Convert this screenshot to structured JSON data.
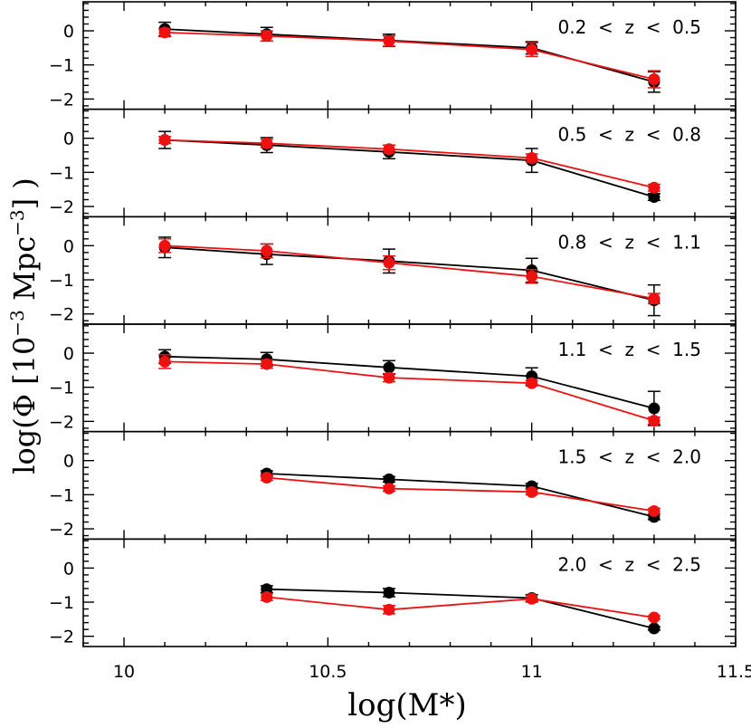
{
  "chart_data": {
    "type": "scatter",
    "xlabel": "log(M*)",
    "ylabel": "log(Φ [10⁻³ Mpc⁻³] )",
    "ylabel_parts": {
      "prefix": "log(Φ [10",
      "sup": "−3",
      "mid": " Mpc",
      "sup2": "−3",
      "suffix": "] )"
    },
    "xlim": [
      9.9,
      11.5
    ],
    "ylim": [
      -2.3,
      0.85
    ],
    "x_ticks": [
      10,
      10.5,
      11,
      11.5
    ],
    "x_tick_labels": [
      "10",
      "10.5",
      "11",
      "11.5"
    ],
    "y_ticks": [
      0,
      -1,
      -2
    ],
    "y_tick_labels": [
      "0",
      "−1",
      "−2"
    ],
    "grid": false,
    "colors": {
      "black_series": "#000000",
      "red_series": "#ee1111"
    },
    "panels": [
      {
        "label": "0.2  <  z  <  0.5",
        "series": [
          {
            "color": "black",
            "x": [
              10.1,
              10.35,
              10.65,
              11.0,
              11.3
            ],
            "y": [
              0.05,
              -0.1,
              -0.28,
              -0.5,
              -1.5
            ],
            "err": [
              0.2,
              0.2,
              0.18,
              0.18,
              0.3
            ]
          },
          {
            "color": "red",
            "x": [
              10.1,
              10.35,
              10.65,
              11.0,
              11.3
            ],
            "y": [
              -0.05,
              -0.15,
              -0.3,
              -0.55,
              -1.42
            ],
            "err": [
              0.12,
              0.15,
              0.15,
              0.2,
              0.25
            ]
          }
        ]
      },
      {
        "label": "0.5  <  z  <  0.8",
        "series": [
          {
            "color": "black",
            "x": [
              10.1,
              10.35,
              10.65,
              11.0,
              11.3
            ],
            "y": [
              -0.05,
              -0.2,
              -0.4,
              -0.65,
              -1.72
            ],
            "err": [
              0.25,
              0.22,
              0.2,
              0.35,
              0.1
            ]
          },
          {
            "color": "red",
            "x": [
              10.1,
              10.35,
              10.65,
              11.0,
              11.3
            ],
            "y": [
              -0.05,
              -0.15,
              -0.32,
              -0.58,
              -1.45
            ],
            "err": [
              0.1,
              0.12,
              0.12,
              0.12,
              0.1
            ]
          }
        ]
      },
      {
        "label": "0.8  <  z  <  1.1",
        "series": [
          {
            "color": "black",
            "x": [
              10.1,
              10.35,
              10.65,
              11.0,
              11.3
            ],
            "y": [
              -0.05,
              -0.25,
              -0.45,
              -0.72,
              -1.6
            ],
            "err": [
              0.3,
              0.3,
              0.35,
              0.35,
              0.45
            ]
          },
          {
            "color": "red",
            "x": [
              10.1,
              10.35,
              10.65,
              11.0,
              11.3
            ],
            "y": [
              0.0,
              -0.15,
              -0.5,
              -0.9,
              -1.55
            ],
            "err": [
              0.2,
              0.2,
              0.2,
              0.2,
              0.15
            ]
          }
        ]
      },
      {
        "label": "1.1  <  z  <  1.5",
        "series": [
          {
            "color": "black",
            "x": [
              10.1,
              10.35,
              10.65,
              11.0,
              11.3
            ],
            "y": [
              -0.1,
              -0.18,
              -0.42,
              -0.68,
              -1.62
            ],
            "err": [
              0.2,
              0.2,
              0.2,
              0.25,
              0.5
            ]
          },
          {
            "color": "red",
            "x": [
              10.1,
              10.35,
              10.65,
              11.0,
              11.3
            ],
            "y": [
              -0.25,
              -0.32,
              -0.72,
              -0.88,
              -1.98
            ],
            "err": [
              0.2,
              0.12,
              0.12,
              0.08,
              0.1
            ]
          }
        ]
      },
      {
        "label": "1.5  <  z  <  2.0",
        "series": [
          {
            "color": "black",
            "x": [
              10.35,
              10.65,
              11.0,
              11.3
            ],
            "y": [
              -0.38,
              -0.55,
              -0.75,
              -1.65
            ],
            "err": [
              0.08,
              0.08,
              0.08,
              0.08
            ]
          },
          {
            "color": "red",
            "x": [
              10.35,
              10.65,
              11.0,
              11.3
            ],
            "y": [
              -0.5,
              -0.82,
              -0.92,
              -1.48
            ],
            "err": [
              0.08,
              0.08,
              0.08,
              0.08
            ]
          }
        ]
      },
      {
        "label": "2.0  <  z  <  2.5",
        "series": [
          {
            "color": "black",
            "x": [
              10.35,
              10.65,
              11.0,
              11.3
            ],
            "y": [
              -0.62,
              -0.72,
              -0.88,
              -1.77
            ],
            "err": [
              0.1,
              0.12,
              0.1,
              0.05
            ]
          },
          {
            "color": "red",
            "x": [
              10.35,
              10.65,
              11.0,
              11.3
            ],
            "y": [
              -0.85,
              -1.22,
              -0.9,
              -1.45
            ],
            "err": [
              0.1,
              0.12,
              0.1,
              0.05
            ]
          }
        ]
      }
    ]
  }
}
